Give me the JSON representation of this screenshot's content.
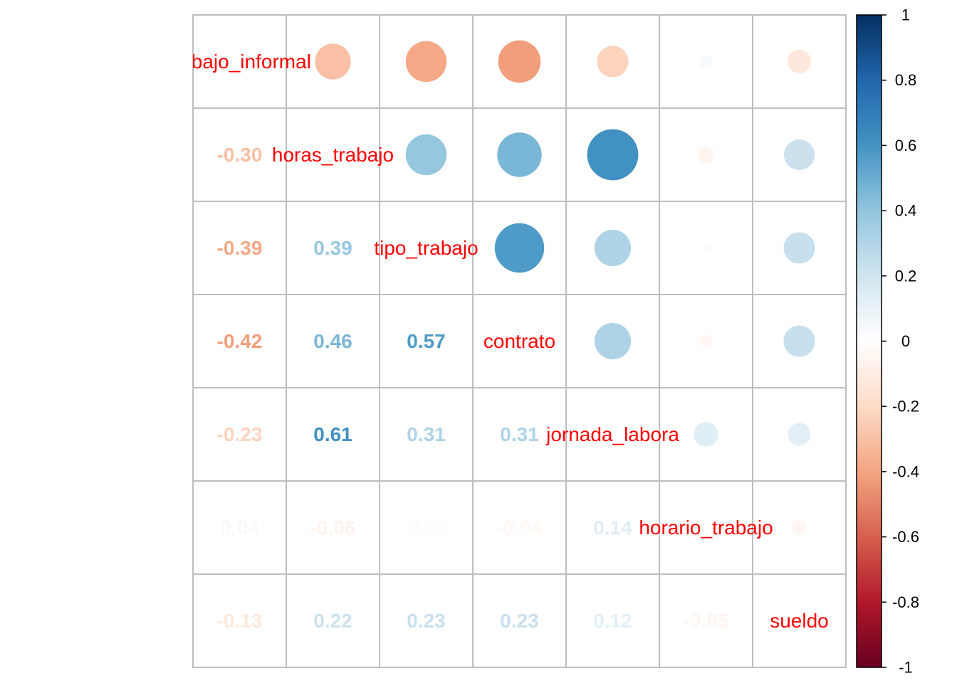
{
  "chart_data": {
    "type": "heatmap",
    "variables": [
      "trabajo_informal",
      "horas_trabajo",
      "tipo_trabajo",
      "contrato",
      "jornada_labora",
      "horario_trabajo",
      "sueldo"
    ],
    "matrix": [
      [
        1,
        -0.3,
        -0.39,
        -0.42,
        -0.23,
        0.04,
        -0.13
      ],
      [
        -0.3,
        1,
        0.39,
        0.46,
        0.61,
        -0.06,
        0.22
      ],
      [
        -0.39,
        0.39,
        1,
        0.57,
        0.31,
        -0.02,
        0.23
      ],
      [
        -0.42,
        0.46,
        0.57,
        1,
        0.31,
        -0.04,
        0.23
      ],
      [
        -0.23,
        0.61,
        0.31,
        0.31,
        1,
        0.14,
        0.12
      ],
      [
        0.04,
        -0.06,
        -0.02,
        -0.04,
        0.14,
        1,
        -0.05
      ],
      [
        -0.13,
        0.22,
        0.23,
        0.23,
        0.12,
        -0.05,
        1
      ]
    ],
    "lower_labels": {
      "1": [
        "-0.30"
      ],
      "2": [
        "-0.39",
        "0.39"
      ],
      "3": [
        "-0.42",
        "0.46",
        "0.57"
      ],
      "4": [
        "-0.23",
        "0.61",
        "0.31",
        "0.31"
      ],
      "5": [
        "0.04",
        "-0.06",
        "-0.02",
        "-0.04",
        "0.14"
      ],
      "6": [
        "-0.13",
        "0.22",
        "0.23",
        "0.23",
        "0.12",
        "-0.05"
      ]
    },
    "upper_method": "circle",
    "lower_method": "number",
    "colorbar": {
      "range": [
        -1,
        1
      ],
      "ticks": [
        "1",
        "0.8",
        "0.6",
        "0.4",
        "0.2",
        "0",
        "-0.2",
        "-0.4",
        "-0.6",
        "-0.8",
        "-1"
      ],
      "tick_values": [
        1,
        0.8,
        0.6,
        0.4,
        0.2,
        0,
        -0.2,
        -0.4,
        -0.6,
        -0.8,
        -1
      ],
      "palette": [
        "#67001F",
        "#B2182B",
        "#D6604D",
        "#F4A582",
        "#FDDBC7",
        "#FFFFFF",
        "#D1E5F0",
        "#92C5DE",
        "#4393C3",
        "#2166AC",
        "#053061"
      ]
    },
    "label_color": "#FF0000",
    "grid_color": "#BEBEBE"
  }
}
